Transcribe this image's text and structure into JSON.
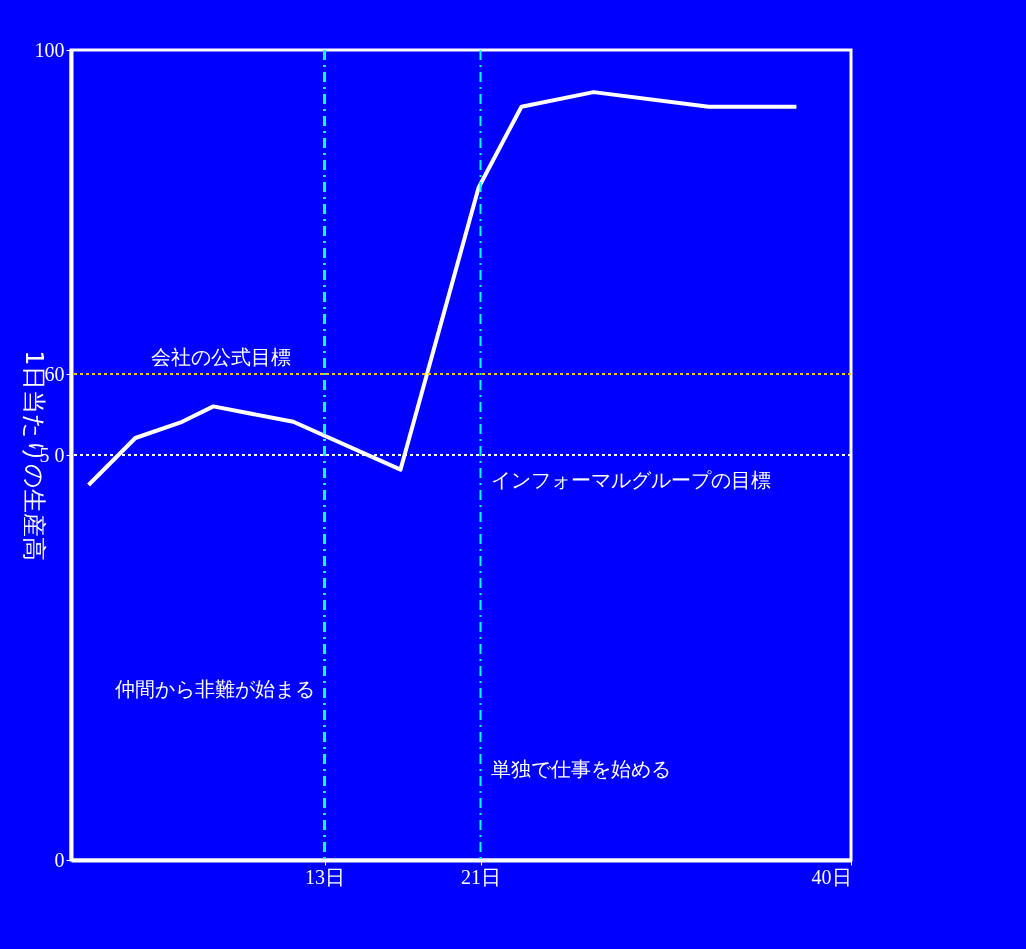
{
  "chart_data": {
    "type": "line",
    "ylabel": "1日当たりの生産高",
    "x": [
      0.9,
      3.3,
      5.7,
      7.3,
      11.4,
      16.9,
      20.9,
      23.1,
      26.8,
      32.7,
      37.2
    ],
    "series": [
      {
        "color": "#ffffff",
        "values": [
          46.3,
          52.1,
          54.1,
          56.0,
          54.1,
          48.2,
          83,
          93,
          94.8,
          93,
          93
        ]
      }
    ],
    "xlim": [
      0,
      40
    ],
    "xticks": [
      {
        "value": 13,
        "label": "13日"
      },
      {
        "value": 21,
        "label": "21日"
      },
      {
        "value": 40,
        "label": "40日"
      }
    ],
    "ylim": [
      0,
      100
    ],
    "yticks": [
      0,
      {
        "value": 50,
        "label": "5 0"
      },
      60,
      100
    ],
    "ref_lines": [
      {
        "axis": "y",
        "value": 60,
        "label": "会社の公式目標",
        "color": "#ffc000",
        "line_style": "dotted"
      },
      {
        "axis": "y",
        "value": 50,
        "label": "インフォーマルグループの目標",
        "color": "#ffffff",
        "line_style": "dotted"
      },
      {
        "axis": "x",
        "value": 13,
        "label": "仲間から非難が始まる",
        "color": "#00ffff",
        "line_style": "dashed"
      },
      {
        "axis": "x",
        "value": 21,
        "label": "単独で仕事を始める",
        "color": "#00ffff",
        "line_style": "dashed"
      }
    ],
    "marker": "none",
    "line_style": "solid",
    "grid": false
  }
}
